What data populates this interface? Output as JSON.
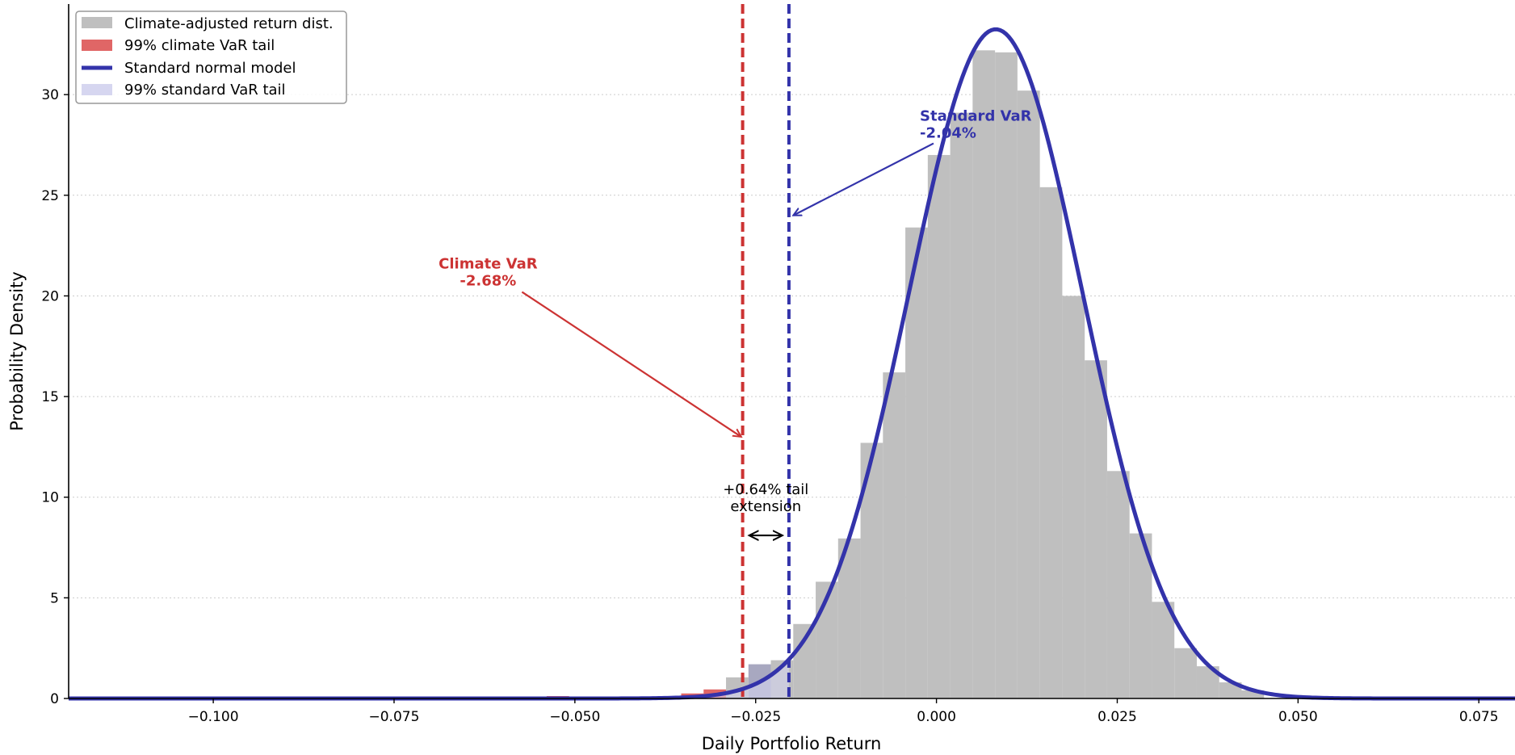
{
  "chart_data": {
    "type": "bar",
    "title": "",
    "xlabel": "Daily Portfolio Return",
    "ylabel": "Probability Density",
    "xlim": [
      -0.12,
      0.08
    ],
    "ylim": [
      0,
      34.5
    ],
    "xticks": [
      -0.1,
      -0.075,
      -0.05,
      -0.025,
      0.0,
      0.025,
      0.05,
      0.075
    ],
    "xtick_labels": [
      "−0.100",
      "−0.075",
      "−0.050",
      "−0.025",
      "0.000",
      "0.025",
      "0.050",
      "0.075"
    ],
    "yticks": [
      0,
      5,
      10,
      15,
      20,
      25,
      30
    ],
    "ytick_labels": [
      "0",
      "5",
      "10",
      "15",
      "20",
      "25",
      "30"
    ],
    "grid": "horizontal-dotted",
    "legend_position": "top-left",
    "histogram": {
      "name": "Climate-adjusted return dist.",
      "color": "#bfbfbf",
      "bin_width": 0.0031,
      "bin_left": [
        -0.0695,
        -0.0539,
        -0.0353,
        -0.0322,
        -0.0291,
        -0.026,
        -0.0229,
        -0.0198,
        -0.0167,
        -0.0136,
        -0.0105,
        -0.0074,
        -0.0043,
        -0.0012,
        0.0019,
        0.005,
        0.0081,
        0.0112,
        0.0143,
        0.0174,
        0.0205,
        0.0236,
        0.0267,
        0.0298,
        0.0329,
        0.036,
        0.0391,
        0.0422
      ],
      "density": [
        0.05,
        0.12,
        0.25,
        0.45,
        1.05,
        1.7,
        1.9,
        3.7,
        5.8,
        7.95,
        12.7,
        16.2,
        23.4,
        27.0,
        29.1,
        32.2,
        32.1,
        30.2,
        25.4,
        20.0,
        16.8,
        11.3,
        8.2,
        4.8,
        2.5,
        1.6,
        0.8,
        0.4
      ]
    },
    "curve": {
      "name": "Standard normal model",
      "color": "#3333aa",
      "mean": 0.0082,
      "std": 0.012
    },
    "climate_var": {
      "legend": "99% climate VaR tail",
      "color": "#cc3333",
      "fill": "#e06666",
      "x": -0.0268,
      "label_title": "Climate VaR",
      "label_value": "-2.68%",
      "label_at": [
        -0.062,
        21
      ],
      "arrow_to": [
        -0.027,
        13
      ]
    },
    "standard_var": {
      "legend": "99% standard VaR tail",
      "color": "#3333aa",
      "fill": "#d6d6f0",
      "x": -0.0204,
      "label_title": "Standard VaR",
      "label_value": "-2.04%",
      "label_at": [
        -0.0023,
        28.3
      ],
      "arrow_to": [
        -0.0198,
        24
      ]
    },
    "tail_extension": {
      "line1": "+0.64% tail",
      "line2": "extension",
      "y": 8.1
    }
  }
}
